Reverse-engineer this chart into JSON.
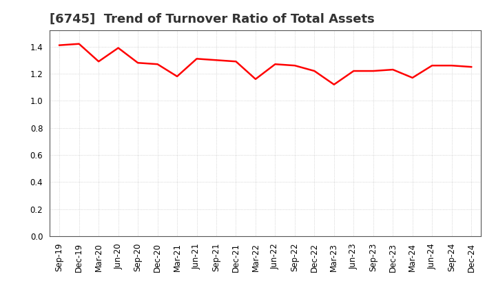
{
  "title": "[6745]  Trend of Turnover Ratio of Total Assets",
  "labels": [
    "Sep-19",
    "Dec-19",
    "Mar-20",
    "Jun-20",
    "Sep-20",
    "Dec-20",
    "Mar-21",
    "Jun-21",
    "Sep-21",
    "Dec-21",
    "Mar-22",
    "Jun-22",
    "Sep-22",
    "Dec-22",
    "Mar-23",
    "Jun-23",
    "Sep-23",
    "Dec-23",
    "Mar-24",
    "Jun-24",
    "Sep-24",
    "Dec-24"
  ],
  "values": [
    1.41,
    1.42,
    1.29,
    1.39,
    1.28,
    1.27,
    1.18,
    1.31,
    1.3,
    1.29,
    1.16,
    1.27,
    1.26,
    1.22,
    1.12,
    1.22,
    1.22,
    1.23,
    1.17,
    1.26,
    1.26,
    1.25
  ],
  "line_color": "#ff0000",
  "background_color": "#ffffff",
  "ylim": [
    0.0,
    1.52
  ],
  "yticks": [
    0.0,
    0.2,
    0.4,
    0.6,
    0.8,
    1.0,
    1.2,
    1.4
  ],
  "grid_color": "#aaaaaa",
  "title_fontsize": 13,
  "tick_fontsize": 8.5,
  "line_width": 1.8
}
